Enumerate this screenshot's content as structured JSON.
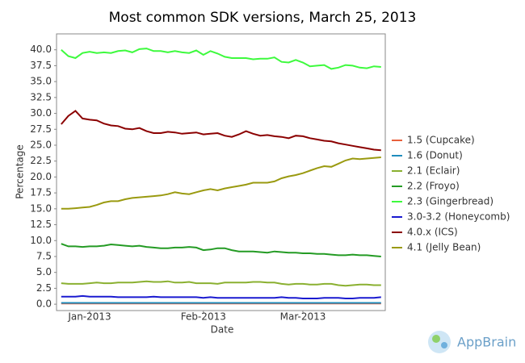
{
  "chart_data": {
    "type": "line",
    "title": "Most common SDK versions, March 25, 2013",
    "x_label": "Date",
    "y_label": "Percentage",
    "watermark": "AppBrain",
    "categories": [
      null,
      null,
      null,
      null,
      "Jan-2013",
      null,
      null,
      null,
      null,
      null,
      null,
      null,
      null,
      null,
      null,
      null,
      null,
      null,
      null,
      null,
      "Feb-2013",
      null,
      null,
      null,
      null,
      null,
      null,
      null,
      null,
      null,
      null,
      null,
      null,
      null,
      "Mar-2013",
      null,
      null,
      null,
      null,
      null,
      null,
      null,
      null,
      null,
      null,
      null
    ],
    "ylim": [
      -1,
      42.5
    ],
    "yticks": [
      {
        "value": 0,
        "label": "0.0"
      },
      2.5,
      {
        "value": 5,
        "label": "5.0"
      },
      7.5,
      {
        "value": 10,
        "label": "10.0"
      },
      12.5,
      {
        "value": 15,
        "label": "15.0"
      },
      17.5,
      {
        "value": 20,
        "label": "20.0"
      },
      22.5,
      {
        "value": 25,
        "label": "25.0"
      },
      27.5,
      {
        "value": 30,
        "label": "30.0"
      },
      32.5,
      {
        "value": 35,
        "label": "35.0"
      },
      37.5,
      {
        "value": 40,
        "label": "40.0"
      }
    ],
    "grid": false,
    "legend": "right",
    "series": [
      {
        "name": "1.5 (Cupcake)",
        "color": "#e8603c",
        "values": [
          0.1,
          0.1,
          0.1,
          0.1,
          0.1,
          0.1,
          0.1,
          0.1,
          0.1,
          0.1,
          0.1,
          0.1,
          0.1,
          0.1,
          0.1,
          0.1,
          0.1,
          0.1,
          0.1,
          0.1,
          0.1,
          0.1,
          0.1,
          0.1,
          0.1,
          0.1,
          0.1,
          0.1,
          0.1,
          0.1,
          0.1,
          0.1,
          0.1,
          0.1,
          0.1,
          0.1,
          0.1,
          0.1,
          0.1,
          0.1,
          0.1,
          0.1,
          0.1,
          0.1,
          0.1,
          0.1
        ]
      },
      {
        "name": "1.6 (Donut)",
        "color": "#1f8dbd",
        "values": [
          0.2,
          0.2,
          0.2,
          0.2,
          0.2,
          0.2,
          0.2,
          0.2,
          0.2,
          0.2,
          0.2,
          0.2,
          0.2,
          0.2,
          0.2,
          0.2,
          0.2,
          0.2,
          0.2,
          0.2,
          0.2,
          0.2,
          0.2,
          0.2,
          0.2,
          0.2,
          0.2,
          0.2,
          0.2,
          0.2,
          0.2,
          0.2,
          0.2,
          0.2,
          0.2,
          0.2,
          0.2,
          0.2,
          0.2,
          0.2,
          0.2,
          0.2,
          0.2,
          0.2,
          0.2,
          0.2
        ]
      },
      {
        "name": "2.1 (Eclair)",
        "color": "#8ab030",
        "values": [
          3.3,
          3.2,
          3.2,
          3.2,
          3.3,
          3.4,
          3.3,
          3.3,
          3.4,
          3.4,
          3.4,
          3.5,
          3.6,
          3.5,
          3.5,
          3.6,
          3.4,
          3.4,
          3.5,
          3.3,
          3.3,
          3.3,
          3.2,
          3.4,
          3.4,
          3.4,
          3.4,
          3.5,
          3.5,
          3.4,
          3.4,
          3.2,
          3.1,
          3.2,
          3.2,
          3.1,
          3.1,
          3.2,
          3.2,
          3.0,
          2.9,
          3.0,
          3.1,
          3.1,
          3.0,
          3.0
        ]
      },
      {
        "name": "2.2 (Froyo)",
        "color": "#249b24",
        "values": [
          9.5,
          9.1,
          9.1,
          9.0,
          9.1,
          9.1,
          9.2,
          9.4,
          9.3,
          9.2,
          9.1,
          9.2,
          9.0,
          8.9,
          8.8,
          8.8,
          8.9,
          8.9,
          9.0,
          8.9,
          8.5,
          8.6,
          8.8,
          8.8,
          8.5,
          8.3,
          8.3,
          8.3,
          8.2,
          8.1,
          8.3,
          8.2,
          8.1,
          8.1,
          8.0,
          8.0,
          7.9,
          7.9,
          7.8,
          7.7,
          7.7,
          7.8,
          7.7,
          7.7,
          7.6,
          7.5
        ]
      },
      {
        "name": "2.3 (Gingerbread)",
        "color": "#3dfa3d",
        "values": [
          40.0,
          39.0,
          38.7,
          39.5,
          39.7,
          39.5,
          39.6,
          39.5,
          39.8,
          39.9,
          39.6,
          40.1,
          40.2,
          39.8,
          39.8,
          39.6,
          39.8,
          39.6,
          39.5,
          39.9,
          39.2,
          39.8,
          39.4,
          38.9,
          38.7,
          38.7,
          38.7,
          38.5,
          38.6,
          38.6,
          38.8,
          38.1,
          38.0,
          38.4,
          38.0,
          37.4,
          37.5,
          37.6,
          37.0,
          37.2,
          37.6,
          37.5,
          37.2,
          37.1,
          37.4,
          37.3
        ]
      },
      {
        "name": "3.0-3.2 (Honeycomb)",
        "color": "#1a1ad0",
        "values": [
          1.2,
          1.2,
          1.2,
          1.3,
          1.2,
          1.2,
          1.2,
          1.2,
          1.1,
          1.1,
          1.1,
          1.1,
          1.1,
          1.2,
          1.1,
          1.1,
          1.1,
          1.1,
          1.1,
          1.1,
          1.0,
          1.1,
          1.0,
          1.0,
          1.0,
          1.0,
          1.0,
          1.0,
          1.0,
          1.0,
          1.0,
          1.1,
          1.0,
          1.0,
          0.9,
          0.9,
          0.9,
          1.0,
          1.0,
          1.0,
          0.9,
          0.9,
          1.0,
          1.0,
          1.0,
          1.1
        ]
      },
      {
        "name": "4.0.x (ICS)",
        "color": "#8b0000",
        "values": [
          28.3,
          29.6,
          30.4,
          29.2,
          29.0,
          28.9,
          28.4,
          28.1,
          28.0,
          27.6,
          27.5,
          27.7,
          27.2,
          26.9,
          26.9,
          27.1,
          27.0,
          26.8,
          26.9,
          27.0,
          26.7,
          26.8,
          26.9,
          26.5,
          26.3,
          26.7,
          27.2,
          26.8,
          26.5,
          26.6,
          26.4,
          26.3,
          26.1,
          26.5,
          26.4,
          26.1,
          25.9,
          25.7,
          25.6,
          25.3,
          25.1,
          24.9,
          24.7,
          24.5,
          24.3,
          24.2
        ]
      },
      {
        "name": "4.1 (Jelly Bean)",
        "color": "#9a9a10",
        "values": [
          15.0,
          15.0,
          15.1,
          15.2,
          15.3,
          15.6,
          16.0,
          16.2,
          16.2,
          16.5,
          16.7,
          16.8,
          16.9,
          17.0,
          17.1,
          17.3,
          17.6,
          17.4,
          17.3,
          17.6,
          17.9,
          18.1,
          17.9,
          18.2,
          18.4,
          18.6,
          18.8,
          19.1,
          19.1,
          19.1,
          19.3,
          19.8,
          20.1,
          20.3,
          20.6,
          21.0,
          21.4,
          21.7,
          21.6,
          22.1,
          22.6,
          22.9,
          22.8,
          22.9,
          23.0,
          23.1
        ]
      }
    ]
  }
}
